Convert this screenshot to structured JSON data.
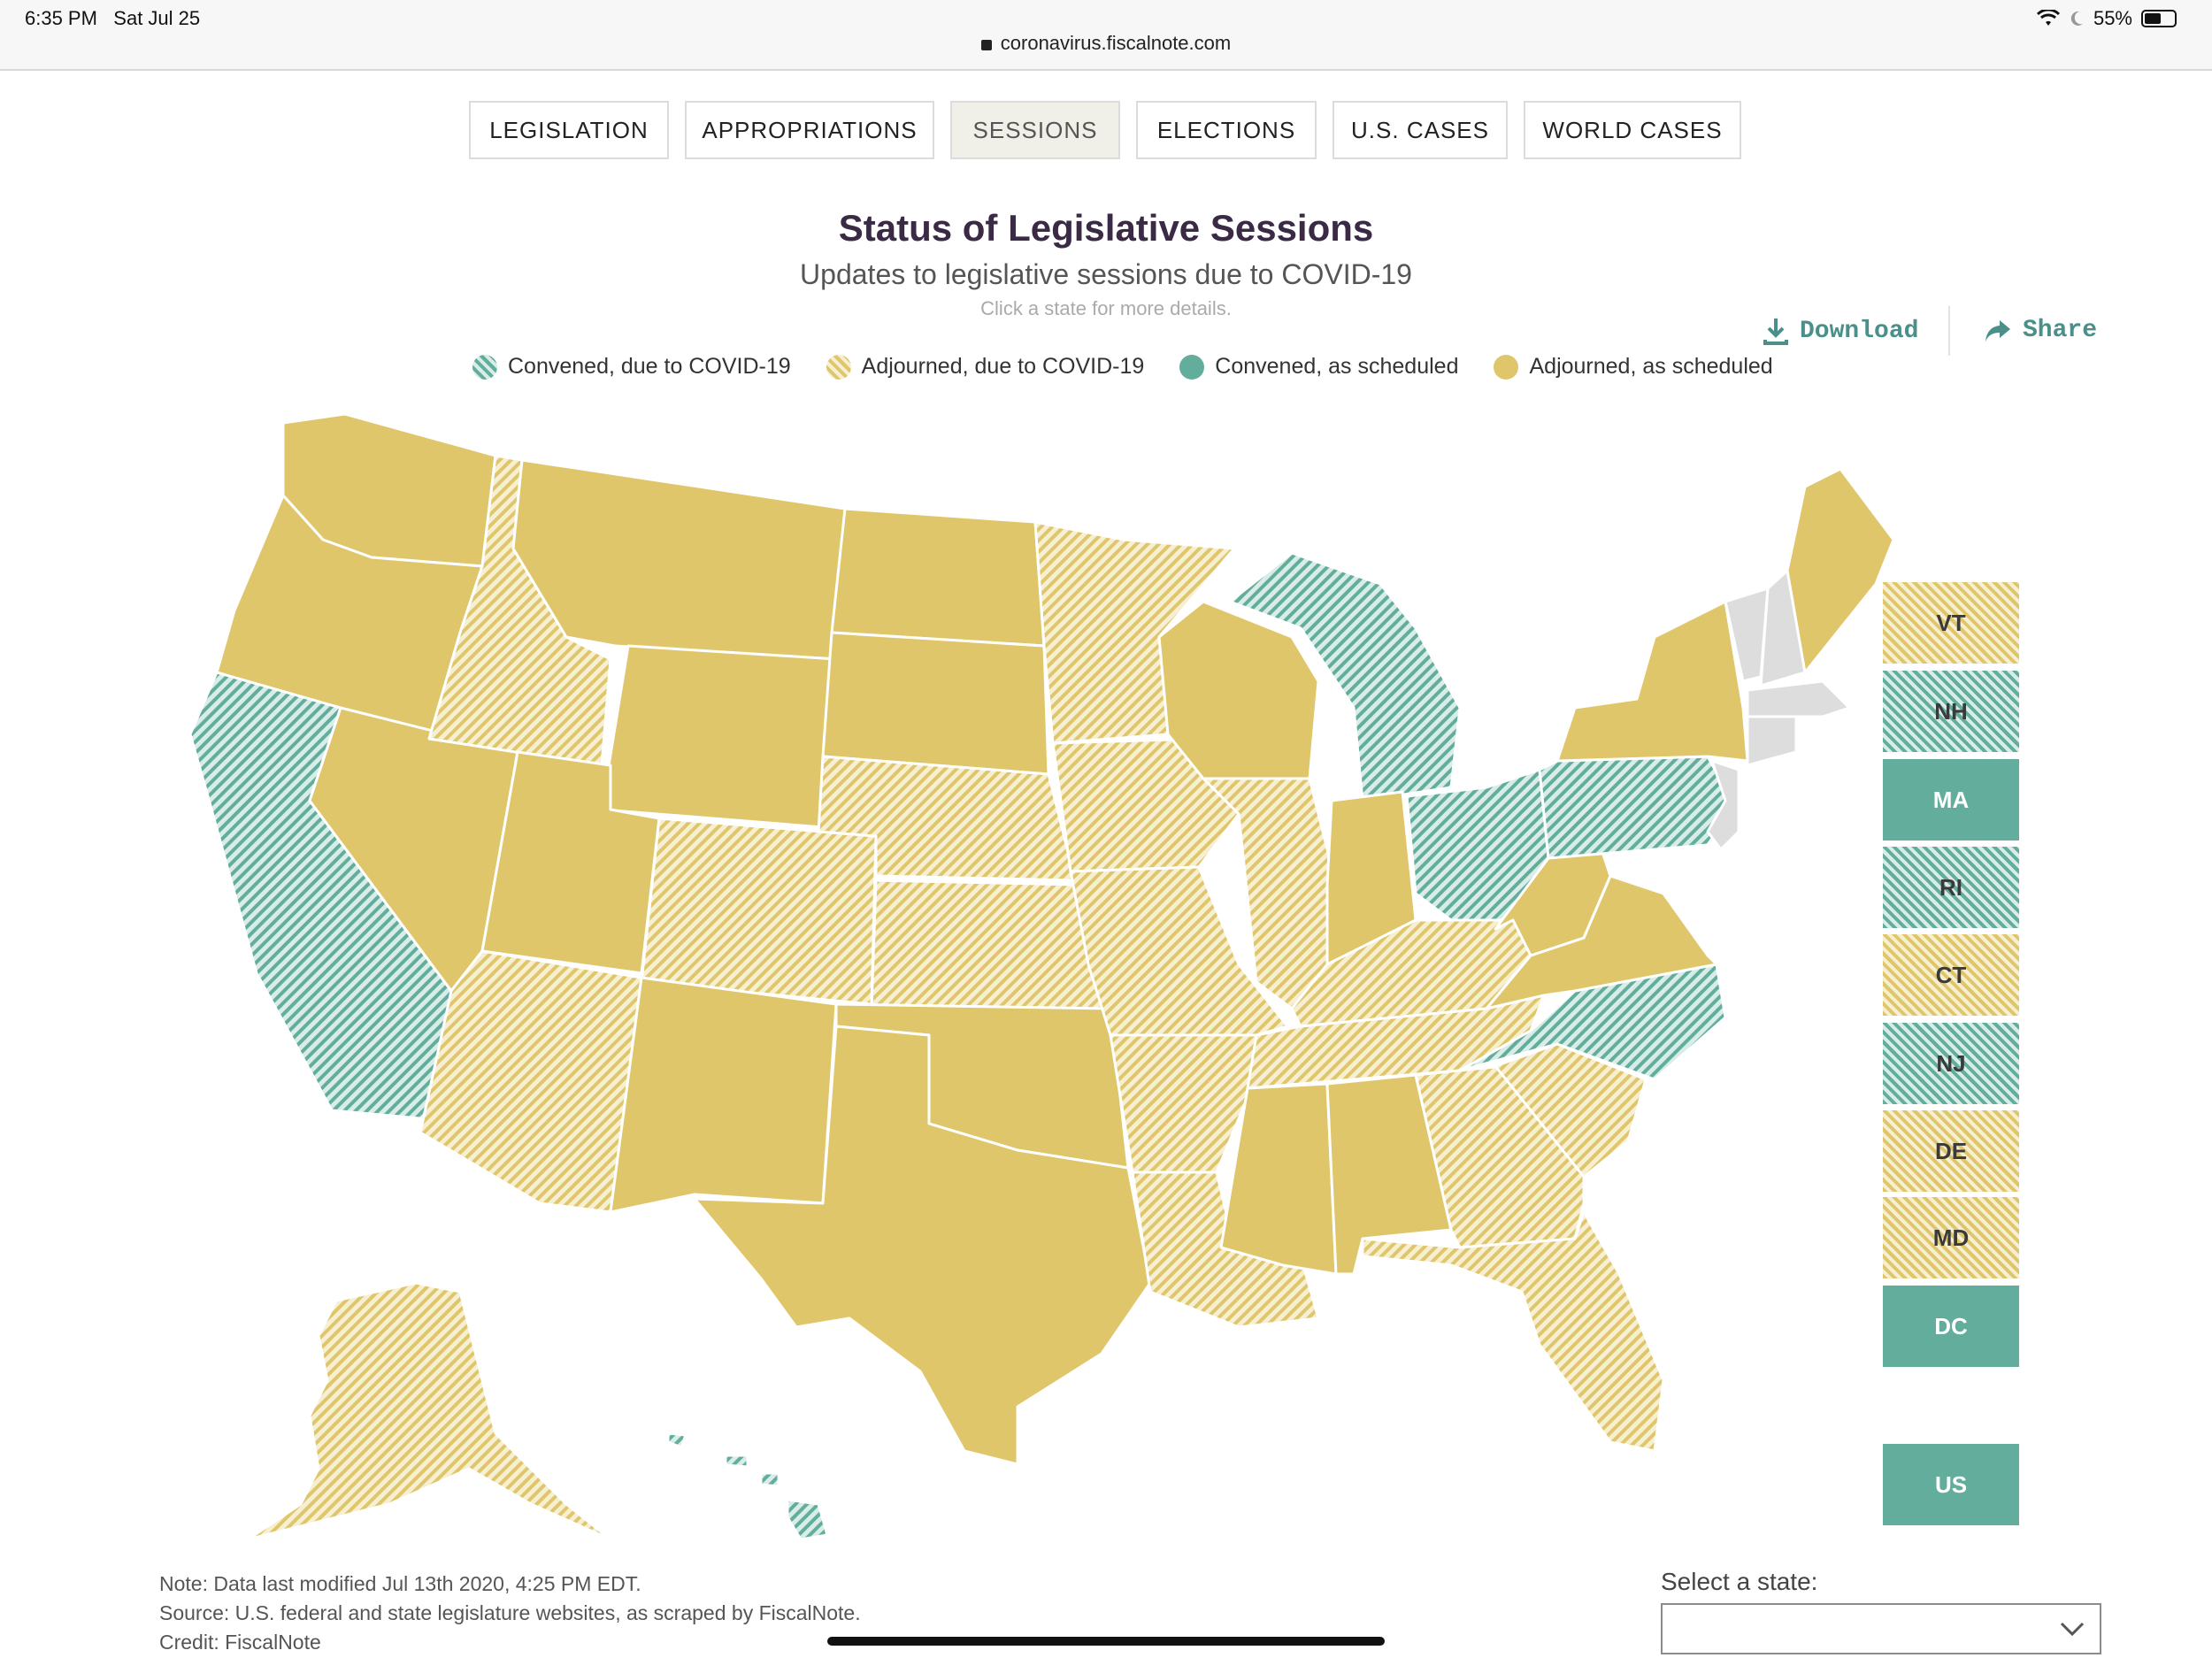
{
  "status_bar": {
    "time": "6:35 PM",
    "date": "Sat Jul 25",
    "battery": "55%",
    "battery_level": 0.55,
    "url": "coronavirus.fiscalnote.com"
  },
  "tabs": [
    {
      "label": "LEGISLATION"
    },
    {
      "label": "APPROPRIATIONS"
    },
    {
      "label": "SESSIONS",
      "active": true
    },
    {
      "label": "ELECTIONS"
    },
    {
      "label": "U.S. CASES"
    },
    {
      "label": "WORLD CASES"
    }
  ],
  "header": {
    "title": "Status of Legislative Sessions",
    "subtitle": "Updates to legislative sessions due to COVID-19",
    "hint": "Click a state for more details."
  },
  "actions": {
    "download": "Download",
    "share": "Share"
  },
  "colors": {
    "teal": "#63ad9c",
    "mustard": "#e0c66b",
    "teal_hatch_bg": "#d9ede8",
    "mustard_hatch_bg": "#f7efd2"
  },
  "legend": [
    {
      "label": "Convened, due to COVID-19",
      "status": "convened_covid"
    },
    {
      "label": "Adjourned, due to COVID-19",
      "status": "adjourned_covid"
    },
    {
      "label": "Convened, as scheduled",
      "status": "convened"
    },
    {
      "label": "Adjourned, as scheduled",
      "status": "adjourned"
    }
  ],
  "states": {
    "WA": "adjourned",
    "OR": "adjourned",
    "CA": "convened_covid",
    "NV": "adjourned",
    "ID": "adjourned_covid",
    "MT": "adjourned",
    "WY": "adjourned",
    "UT": "adjourned",
    "AZ": "adjourned_covid",
    "CO": "adjourned_covid",
    "NM": "adjourned",
    "ND": "adjourned",
    "SD": "adjourned",
    "NE": "adjourned_covid",
    "KS": "adjourned_covid",
    "OK": "adjourned",
    "TX": "adjourned",
    "MN": "adjourned_covid",
    "IA": "adjourned_covid",
    "MO": "adjourned_covid",
    "AR": "adjourned_covid",
    "LA": "adjourned_covid",
    "WI": "adjourned",
    "IL": "adjourned_covid",
    "MI": "convened_covid",
    "IN": "adjourned",
    "OH": "convened_covid",
    "KY": "adjourned_covid",
    "TN": "adjourned_covid",
    "MS": "adjourned",
    "AL": "adjourned",
    "GA": "adjourned_covid",
    "FL": "adjourned_covid",
    "SC": "adjourned_covid",
    "NC": "convened_covid",
    "VA": "adjourned",
    "WV": "adjourned",
    "PA": "convened_covid",
    "NY": "adjourned",
    "ME": "adjourned",
    "AK": "adjourned_covid",
    "HI": "convened_covid"
  },
  "small_states": [
    {
      "abbr": "VT",
      "status": "adjourned_covid"
    },
    {
      "abbr": "NH",
      "status": "convened_covid"
    },
    {
      "abbr": "MA",
      "status": "convened"
    },
    {
      "abbr": "RI",
      "status": "convened_covid"
    },
    {
      "abbr": "CT",
      "status": "adjourned_covid"
    },
    {
      "abbr": "NJ",
      "status": "convened_covid"
    },
    {
      "abbr": "DE",
      "status": "adjourned_covid"
    },
    {
      "abbr": "MD",
      "status": "adjourned_covid"
    },
    {
      "abbr": "DC",
      "status": "convened"
    },
    {
      "abbr": "US",
      "status": "convened"
    }
  ],
  "footer": {
    "note": "Note: Data last modified Jul 13th 2020, 4:25 PM EDT.",
    "source": "Source: U.S. federal and state legislature websites, as scraped by FiscalNote.",
    "credit": "Credit: FiscalNote",
    "select_label": "Select a state:",
    "select_value": ""
  }
}
